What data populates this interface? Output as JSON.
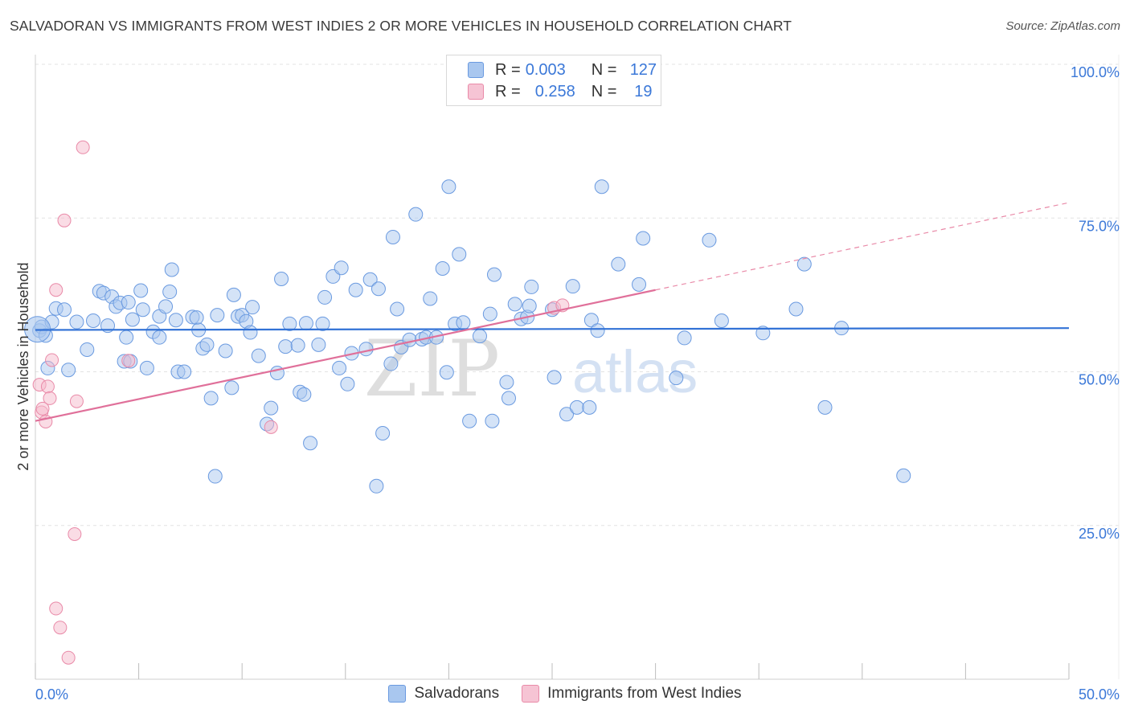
{
  "title": "SALVADORAN VS IMMIGRANTS FROM WEST INDIES 2 OR MORE VEHICLES IN HOUSEHOLD CORRELATION CHART",
  "source": "Source: ZipAtlas.com",
  "watermark": {
    "zip": "ZIP",
    "atlas": "atlas"
  },
  "legend": {
    "rows": [
      {
        "r_label": "R =",
        "r_value": "0.003",
        "n_label": "N =",
        "n_value": "127"
      },
      {
        "r_label": "R =",
        "r_value": "0.258",
        "n_label": "N =",
        "n_value": "19"
      }
    ]
  },
  "bottom_legend": [
    "Salvadorans",
    "Immigrants from West Indies"
  ],
  "chart_data": {
    "type": "scatter",
    "title": "SALVADORAN VS IMMIGRANTS FROM WEST INDIES 2 OR MORE VEHICLES IN HOUSEHOLD CORRELATION CHART",
    "xlabel": "",
    "ylabel": "2 or more Vehicles in Household",
    "xlim": [
      0,
      50
    ],
    "ylim": [
      0,
      100
    ],
    "x_tick_labels": [
      "0.0%",
      "50.0%"
    ],
    "y_tick_labels": [
      "100.0%",
      "75.0%",
      "50.0%",
      "25.0%"
    ],
    "y_tick_values": [
      100,
      75,
      50,
      25
    ],
    "colors": {
      "blue_fill": "#a9c7ef",
      "blue_stroke": "#6a9ae0",
      "blue_line": "#3272d6",
      "pink_fill": "#f6b9cc",
      "pink_stroke": "#e98aa8",
      "pink_line": "#e0709a",
      "tick_text": "#3b78d8",
      "grid": "#e3e3e3"
    },
    "series": [
      {
        "name": "Salvadorans",
        "r": 0.003,
        "n": 127,
        "trend": {
          "x0": 0,
          "y0": 56.8,
          "x1": 50,
          "y1": 57.1
        },
        "points": [
          [
            0.2,
            56.7
          ],
          [
            0.3,
            57.3
          ],
          [
            0.5,
            55.9
          ],
          [
            0.6,
            50.6
          ],
          [
            0.8,
            58.1
          ],
          [
            1.0,
            60.3
          ],
          [
            1.4,
            60.1
          ],
          [
            1.6,
            50.3
          ],
          [
            2.0,
            58.1
          ],
          [
            2.5,
            53.6
          ],
          [
            2.8,
            58.3
          ],
          [
            3.1,
            63.1
          ],
          [
            3.3,
            62.8
          ],
          [
            3.5,
            57.5
          ],
          [
            3.7,
            62.2
          ],
          [
            3.9,
            60.6
          ],
          [
            4.1,
            61.2
          ],
          [
            4.5,
            61.3
          ],
          [
            4.4,
            55.6
          ],
          [
            4.3,
            51.7
          ],
          [
            4.6,
            51.7
          ],
          [
            4.7,
            58.5
          ],
          [
            5.1,
            63.2
          ],
          [
            5.2,
            60.1
          ],
          [
            5.4,
            50.6
          ],
          [
            5.7,
            56.5
          ],
          [
            6.0,
            59.0
          ],
          [
            6.0,
            55.6
          ],
          [
            6.3,
            60.6
          ],
          [
            6.5,
            63.0
          ],
          [
            6.6,
            66.6
          ],
          [
            6.8,
            58.4
          ],
          [
            6.9,
            50.0
          ],
          [
            7.2,
            50.0
          ],
          [
            7.6,
            58.9
          ],
          [
            7.8,
            58.8
          ],
          [
            7.9,
            56.8
          ],
          [
            8.1,
            53.8
          ],
          [
            8.3,
            54.4
          ],
          [
            8.5,
            45.7
          ],
          [
            8.7,
            33.0
          ],
          [
            8.8,
            59.2
          ],
          [
            9.2,
            53.4
          ],
          [
            9.5,
            47.4
          ],
          [
            9.6,
            62.5
          ],
          [
            9.8,
            59.0
          ],
          [
            10.0,
            59.2
          ],
          [
            10.2,
            58.2
          ],
          [
            10.4,
            56.4
          ],
          [
            10.5,
            60.5
          ],
          [
            10.8,
            52.6
          ],
          [
            11.2,
            41.5
          ],
          [
            11.4,
            44.1
          ],
          [
            11.7,
            49.8
          ],
          [
            11.9,
            65.1
          ],
          [
            12.1,
            54.1
          ],
          [
            12.3,
            57.8
          ],
          [
            12.7,
            54.3
          ],
          [
            12.8,
            46.7
          ],
          [
            13.0,
            46.3
          ],
          [
            13.1,
            57.9
          ],
          [
            13.3,
            38.4
          ],
          [
            13.7,
            54.4
          ],
          [
            13.9,
            57.8
          ],
          [
            14.0,
            62.1
          ],
          [
            14.4,
            65.5
          ],
          [
            14.7,
            50.6
          ],
          [
            14.8,
            66.9
          ],
          [
            15.1,
            48.0
          ],
          [
            15.3,
            53.0
          ],
          [
            15.5,
            63.3
          ],
          [
            16.0,
            53.7
          ],
          [
            16.2,
            65.0
          ],
          [
            16.5,
            31.4
          ],
          [
            16.6,
            63.5
          ],
          [
            16.8,
            40.0
          ],
          [
            17.2,
            51.3
          ],
          [
            17.3,
            71.9
          ],
          [
            17.5,
            60.2
          ],
          [
            17.7,
            54.0
          ],
          [
            18.1,
            55.2
          ],
          [
            18.4,
            75.6
          ],
          [
            18.7,
            55.3
          ],
          [
            18.9,
            55.6
          ],
          [
            19.1,
            61.9
          ],
          [
            19.4,
            55.6
          ],
          [
            19.7,
            66.8
          ],
          [
            19.9,
            49.9
          ],
          [
            20.0,
            80.1
          ],
          [
            20.3,
            57.8
          ],
          [
            20.5,
            69.1
          ],
          [
            20.7,
            58.0
          ],
          [
            21.0,
            42.0
          ],
          [
            21.5,
            55.8
          ],
          [
            22.0,
            59.4
          ],
          [
            22.1,
            42.0
          ],
          [
            22.2,
            65.8
          ],
          [
            22.8,
            48.3
          ],
          [
            22.9,
            45.7
          ],
          [
            23.2,
            61.0
          ],
          [
            23.5,
            58.6
          ],
          [
            23.8,
            58.9
          ],
          [
            23.9,
            60.7
          ],
          [
            24.0,
            63.8
          ],
          [
            25.0,
            60.1
          ],
          [
            25.1,
            49.1
          ],
          [
            25.7,
            43.1
          ],
          [
            26.0,
            63.9
          ],
          [
            26.2,
            44.2
          ],
          [
            26.8,
            44.2
          ],
          [
            26.9,
            58.4
          ],
          [
            27.2,
            56.7
          ],
          [
            27.4,
            80.1
          ],
          [
            28.2,
            67.5
          ],
          [
            29.2,
            64.2
          ],
          [
            29.4,
            71.7
          ],
          [
            31.0,
            49.0
          ],
          [
            31.4,
            55.5
          ],
          [
            32.6,
            71.4
          ],
          [
            33.2,
            58.3
          ],
          [
            35.2,
            56.3
          ],
          [
            36.8,
            60.2
          ],
          [
            37.2,
            67.5
          ],
          [
            38.2,
            44.2
          ],
          [
            39.0,
            57.1
          ],
          [
            42.0,
            33.1
          ],
          [
            0.1,
            56.9
          ]
        ]
      },
      {
        "name": "Immigrants from West Indies",
        "r": 0.258,
        "n": 19,
        "trend": {
          "x0": 0,
          "y0": 42.0,
          "x1": 30.0,
          "y1": 63.3
        },
        "extension": {
          "x0": 30.0,
          "y0": 63.3,
          "x1": 50,
          "y1": 77.5
        },
        "points": [
          [
            0.2,
            47.9
          ],
          [
            0.3,
            43.4
          ],
          [
            0.5,
            41.9
          ],
          [
            0.6,
            47.6
          ],
          [
            0.7,
            45.7
          ],
          [
            0.8,
            51.9
          ],
          [
            1.0,
            11.5
          ],
          [
            1.0,
            63.3
          ],
          [
            1.2,
            8.4
          ],
          [
            1.4,
            74.6
          ],
          [
            1.6,
            3.5
          ],
          [
            1.9,
            23.6
          ],
          [
            2.0,
            45.2
          ],
          [
            2.3,
            86.5
          ],
          [
            4.5,
            51.8
          ],
          [
            11.4,
            41.0
          ],
          [
            25.1,
            60.4
          ],
          [
            25.5,
            60.8
          ],
          [
            0.35,
            44.0
          ]
        ]
      }
    ]
  }
}
